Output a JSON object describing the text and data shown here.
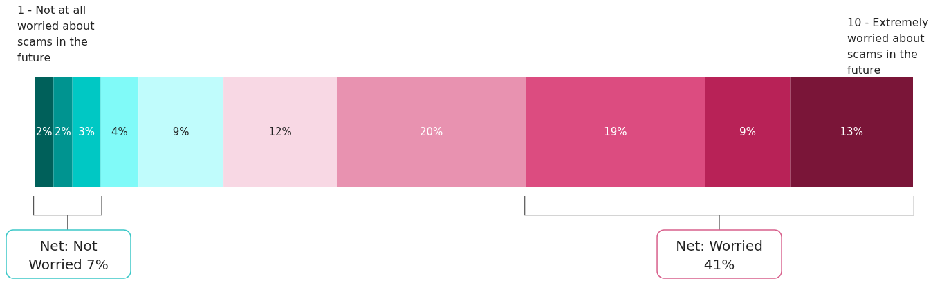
{
  "chart_data": {
    "type": "bar",
    "orientation": "horizontal",
    "stacked": true,
    "categories": [
      null
    ],
    "series": [
      {
        "color": "#00605a",
        "values": [
          2
        ],
        "value_labels": [
          "2%"
        ]
      },
      {
        "color": "#009490",
        "values": [
          2
        ],
        "value_labels": [
          "2%"
        ]
      },
      {
        "color": "#00c8c4",
        "values": [
          3
        ],
        "value_labels": [
          "3%"
        ]
      },
      {
        "color": "#80faf8",
        "values": [
          4
        ],
        "value_labels": [
          "4%"
        ]
      },
      {
        "color": "#c0fcfc",
        "values": [
          9
        ],
        "value_labels": [
          "9%"
        ]
      },
      {
        "color": "#f8d8e4",
        "values": [
          12
        ],
        "value_labels": [
          "12%"
        ]
      },
      {
        "color": "#e892b0",
        "values": [
          20
        ],
        "value_labels": [
          "20%"
        ]
      },
      {
        "color": "#dc4c80",
        "values": [
          19
        ],
        "value_labels": [
          "19%"
        ]
      },
      {
        "color": "#b82257",
        "values": [
          9
        ],
        "value_labels": [
          "9%"
        ]
      },
      {
        "color": "#7a1538",
        "values": [
          13
        ],
        "value_labels": [
          "13%"
        ]
      }
    ],
    "annotations": [
      "1 - Not at all worried about scams in the future",
      "10 - Extremely worried about scams in the future",
      "Net: Not Worried 7%",
      "Net: Worried 41%"
    ]
  }
}
